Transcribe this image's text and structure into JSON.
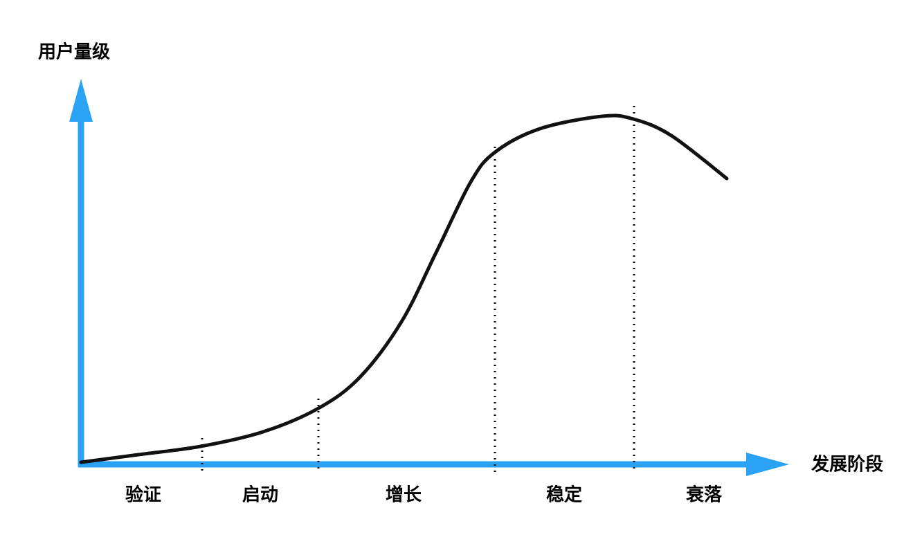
{
  "y_axis_label": "用户量级",
  "x_axis_label": "发展阶段",
  "stages": [
    "验证",
    "启动",
    "增长",
    "稳定",
    "衰落"
  ]
}
